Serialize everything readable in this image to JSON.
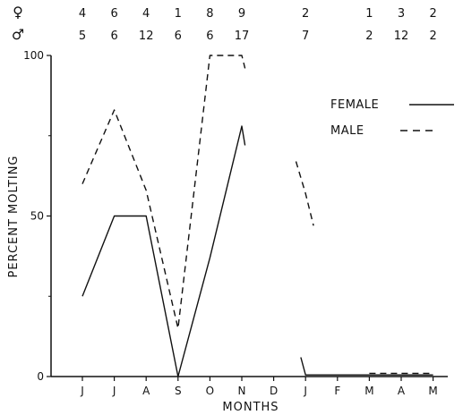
{
  "chart_data": {
    "type": "line",
    "title": "",
    "xlabel": "MONTHS",
    "ylabel": "PERCENT MOLTING",
    "ylim": [
      0,
      100
    ],
    "yticks": [
      0,
      50,
      100
    ],
    "x": [
      "J",
      "J",
      "A",
      "S",
      "O",
      "N",
      "D",
      "J",
      "F",
      "M",
      "A",
      "M"
    ],
    "grid": false,
    "legend_position": "top-right",
    "legend": [
      {
        "name": "FEMALE",
        "style": "solid"
      },
      {
        "name": "MALE",
        "style": "dashed"
      }
    ],
    "sample_sizes": {
      "female_symbol": "♀",
      "male_symbol": "♂",
      "female": [
        "4",
        "6",
        "4",
        "1",
        "8",
        "9",
        "",
        "2",
        "",
        "1",
        "3",
        "2"
      ],
      "male": [
        "5",
        "6",
        "12",
        "6",
        "6",
        "17",
        "",
        "7",
        "",
        "2",
        "12",
        "2"
      ]
    },
    "series": [
      {
        "name": "FEMALE",
        "style": "solid",
        "segments": [
          [
            [
              0,
              25
            ],
            [
              1,
              50
            ],
            [
              2,
              50
            ],
            [
              3,
              0
            ],
            [
              4,
              37
            ],
            [
              5,
              78
            ],
            [
              5.1,
              72
            ]
          ],
          [
            [
              6.85,
              6
            ],
            [
              7,
              0.5
            ],
            [
              11,
              0.5
            ]
          ]
        ]
      },
      {
        "name": "MALE",
        "style": "dashed",
        "segments": [
          [
            [
              0,
              60
            ],
            [
              1,
              83
            ],
            [
              2,
              58
            ],
            [
              3,
              15
            ],
            [
              4,
              100
            ],
            [
              5,
              100
            ],
            [
              5.1,
              96
            ]
          ],
          [
            [
              6.7,
              67
            ],
            [
              7,
              57
            ],
            [
              7.25,
              47
            ]
          ],
          [
            [
              9,
              1
            ],
            [
              11,
              1
            ]
          ]
        ]
      }
    ]
  }
}
